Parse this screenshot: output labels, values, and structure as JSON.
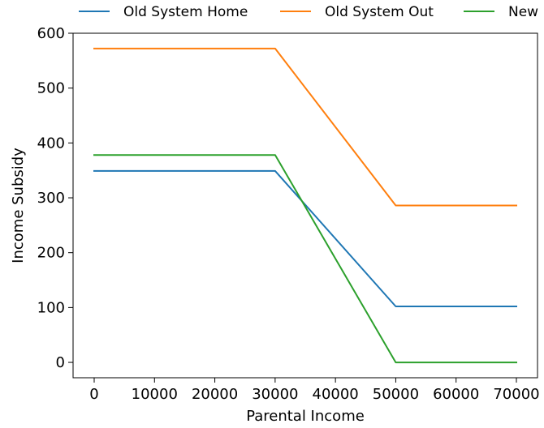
{
  "chart_data": {
    "type": "line",
    "title": "",
    "xlabel": "Parental Income",
    "ylabel": "Income Subsidy",
    "xlim": [
      -3500,
      73500
    ],
    "ylim": [
      -28,
      600
    ],
    "xticks": [
      0,
      10000,
      20000,
      30000,
      40000,
      50000,
      60000,
      70000
    ],
    "yticks": [
      0,
      100,
      200,
      300,
      400,
      500,
      600
    ],
    "grid": false,
    "legend": "top-center, outside plot, one row",
    "series": [
      {
        "name": "Old System Home",
        "color": "#1f77b4",
        "x": [
          0,
          30000,
          50000,
          70000
        ],
        "y": [
          349,
          349,
          102,
          102
        ]
      },
      {
        "name": "Old System Out",
        "color": "#ff7f0e",
        "x": [
          0,
          30000,
          50000,
          70000
        ],
        "y": [
          572,
          572,
          286,
          286
        ]
      },
      {
        "name": "New",
        "color": "#2ca02c",
        "x": [
          0,
          30000,
          50000,
          70000
        ],
        "y": [
          378,
          378,
          0,
          0
        ]
      }
    ]
  }
}
